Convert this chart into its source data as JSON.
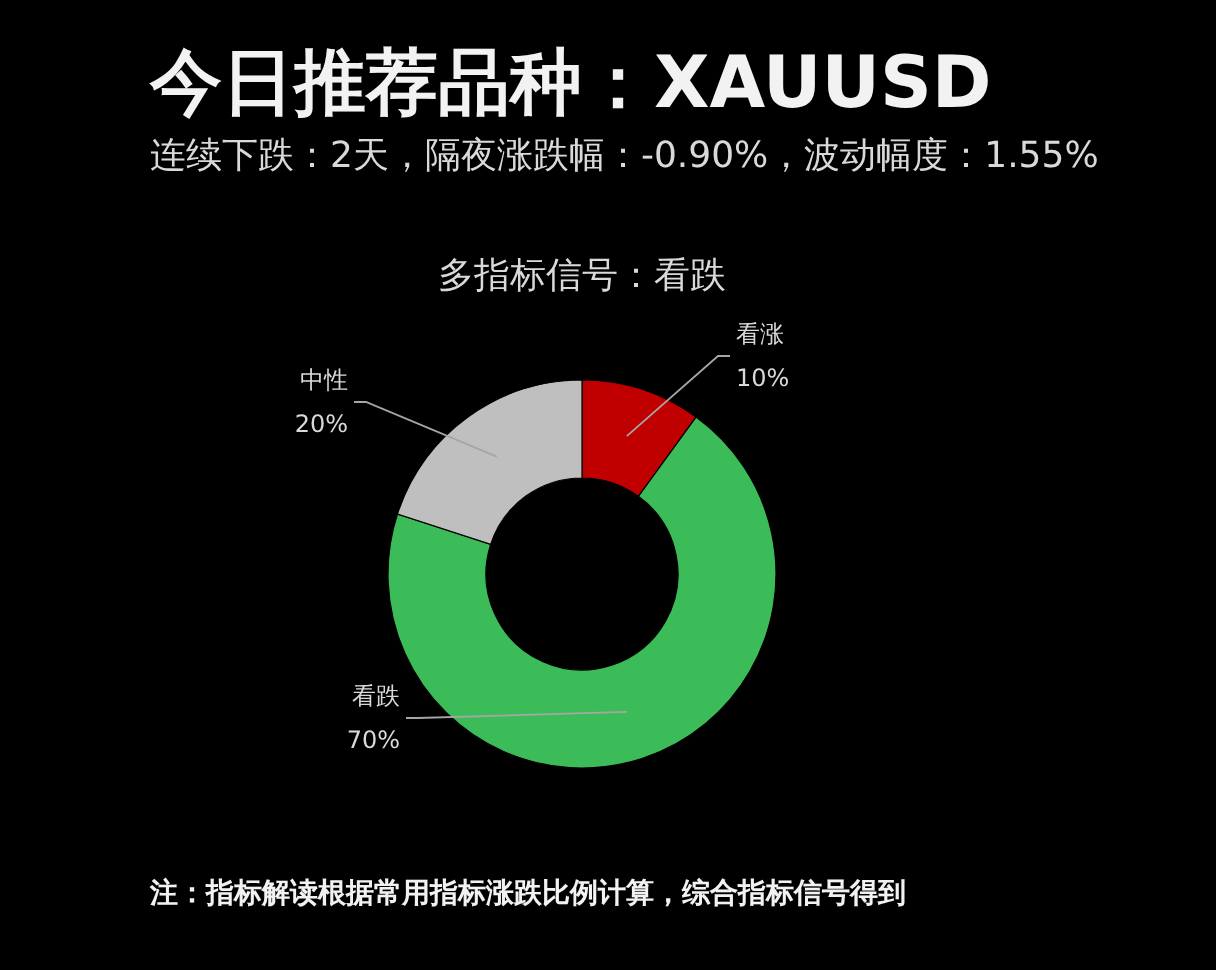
{
  "chart_data": {
    "type": "donut",
    "title": "今日推荐品种：XAUUSD",
    "subtitle": "连续下跌：2天，隔夜涨跌幅：-0.90%，波动幅度：1.55%",
    "annotations": [
      "多指标信号：看跌",
      "注：指标解读根据常用指标涨跌比例计算，综合指标信号得到"
    ],
    "categories": [
      "看涨",
      "看跌",
      "中性"
    ],
    "values": [
      10,
      70,
      20
    ],
    "colors": [
      "#c00000",
      "#3cbc58",
      "#bfbfbf"
    ],
    "value_labels": [
      "10%",
      "70%",
      "20%"
    ]
  }
}
